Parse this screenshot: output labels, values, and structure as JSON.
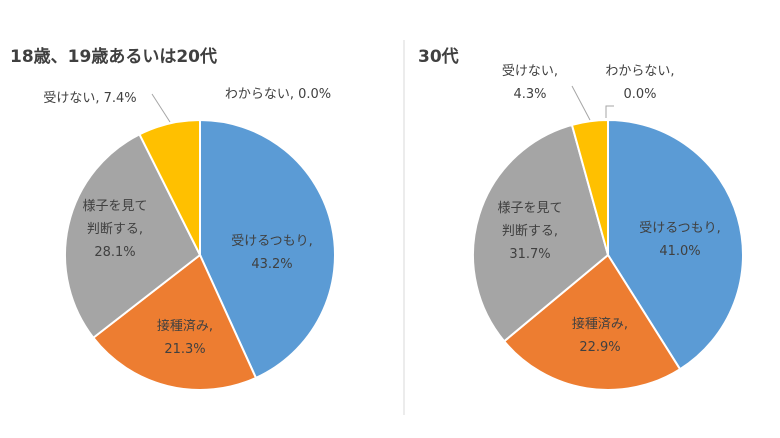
{
  "chart_data": [
    {
      "type": "pie",
      "title": "18歳、19歳あるいは20代",
      "slices": [
        {
          "name": "受けるつもり",
          "value": 43.2,
          "label": [
            "受けるつもり,",
            "43.2%"
          ],
          "color": "#5B9BD5"
        },
        {
          "name": "接種済み",
          "value": 21.3,
          "label": [
            "接種済み,",
            "21.3%"
          ],
          "color": "#ED7D31"
        },
        {
          "name": "様子を見て判断する",
          "value": 28.1,
          "label": [
            "様子を見て",
            "判断する,",
            "28.1%"
          ],
          "color": "#A5A5A5"
        },
        {
          "name": "受けない",
          "value": 7.4,
          "label": [
            "受けない, 7.4%"
          ],
          "color": "#FFC000"
        },
        {
          "name": "わからない",
          "value": 0.0,
          "label": [
            "わからない, 0.0%"
          ],
          "color": "#4472C4"
        }
      ]
    },
    {
      "type": "pie",
      "title": "30代",
      "slices": [
        {
          "name": "受けるつもり",
          "value": 41.0,
          "label": [
            "受けるつもり,",
            "41.0%"
          ],
          "color": "#5B9BD5"
        },
        {
          "name": "接種済み",
          "value": 22.9,
          "label": [
            "接種済み,",
            "22.9%"
          ],
          "color": "#ED7D31"
        },
        {
          "name": "様子を見て判断する",
          "value": 31.7,
          "label": [
            "様子を見て",
            "判断する,",
            "31.7%"
          ],
          "color": "#A5A5A5"
        },
        {
          "name": "受けない",
          "value": 4.3,
          "label": [
            "受けない,",
            "4.3%"
          ],
          "color": "#FFC000"
        },
        {
          "name": "わからない",
          "value": 0.0,
          "label": [
            "わからない,",
            "0.0%"
          ],
          "color": "#4472C4"
        }
      ]
    }
  ]
}
